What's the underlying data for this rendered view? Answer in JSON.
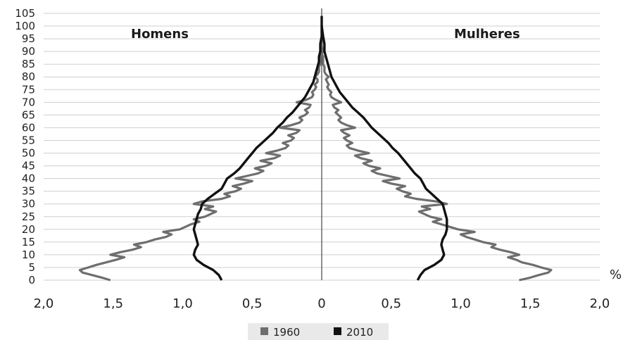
{
  "chart_data": {
    "type": "line",
    "subtype": "population-pyramid",
    "left_label": "Homens",
    "right_label": "Mulheres",
    "unit_label": "%",
    "y_ticks": [
      "0",
      "5",
      "10",
      "15",
      "20",
      "25",
      "30",
      "35",
      "40",
      "45",
      "50",
      "55",
      "60",
      "65",
      "70",
      "75",
      "80",
      "85",
      "90",
      "95",
      "100",
      "105"
    ],
    "x_ticks": [
      "2,0",
      "1,5",
      "1,0",
      "0,5",
      "0",
      "0,5",
      "1,0",
      "1,5",
      "2,0"
    ],
    "ylim": [
      0,
      105
    ],
    "xlim": [
      -2.0,
      2.0
    ],
    "grid": true,
    "legend_position": "bottom-center",
    "series": [
      {
        "name": "1960",
        "color": "#6e6e6e",
        "men": [
          [
            0,
            1.52
          ],
          [
            1,
            1.58
          ],
          [
            2,
            1.65
          ],
          [
            3,
            1.72
          ],
          [
            4,
            1.74
          ],
          [
            5,
            1.68
          ],
          [
            6,
            1.62
          ],
          [
            7,
            1.55
          ],
          [
            8,
            1.48
          ],
          [
            9,
            1.42
          ],
          [
            10,
            1.52
          ],
          [
            11,
            1.45
          ],
          [
            12,
            1.36
          ],
          [
            13,
            1.3
          ],
          [
            14,
            1.35
          ],
          [
            15,
            1.26
          ],
          [
            16,
            1.2
          ],
          [
            17,
            1.12
          ],
          [
            18,
            1.08
          ],
          [
            19,
            1.14
          ],
          [
            20,
            1.02
          ],
          [
            21,
            0.98
          ],
          [
            22,
            0.94
          ],
          [
            23,
            0.88
          ],
          [
            24,
            0.92
          ],
          [
            25,
            0.84
          ],
          [
            26,
            0.8
          ],
          [
            27,
            0.76
          ],
          [
            28,
            0.84
          ],
          [
            29,
            0.78
          ],
          [
            30,
            0.92
          ],
          [
            31,
            0.86
          ],
          [
            32,
            0.72
          ],
          [
            33,
            0.66
          ],
          [
            34,
            0.7
          ],
          [
            35,
            0.62
          ],
          [
            36,
            0.58
          ],
          [
            37,
            0.64
          ],
          [
            38,
            0.56
          ],
          [
            39,
            0.5
          ],
          [
            40,
            0.62
          ],
          [
            41,
            0.54
          ],
          [
            42,
            0.46
          ],
          [
            43,
            0.42
          ],
          [
            44,
            0.48
          ],
          [
            45,
            0.4
          ],
          [
            46,
            0.36
          ],
          [
            47,
            0.44
          ],
          [
            48,
            0.34
          ],
          [
            49,
            0.3
          ],
          [
            50,
            0.4
          ],
          [
            51,
            0.32
          ],
          [
            52,
            0.26
          ],
          [
            53,
            0.24
          ],
          [
            54,
            0.28
          ],
          [
            55,
            0.22
          ],
          [
            56,
            0.2
          ],
          [
            57,
            0.24
          ],
          [
            58,
            0.18
          ],
          [
            59,
            0.16
          ],
          [
            60,
            0.3
          ],
          [
            61,
            0.22
          ],
          [
            62,
            0.16
          ],
          [
            63,
            0.14
          ],
          [
            64,
            0.16
          ],
          [
            65,
            0.12
          ],
          [
            66,
            0.1
          ],
          [
            67,
            0.12
          ],
          [
            68,
            0.09
          ],
          [
            69,
            0.08
          ],
          [
            70,
            0.18
          ],
          [
            71,
            0.11
          ],
          [
            72,
            0.07
          ],
          [
            73,
            0.06
          ],
          [
            74,
            0.07
          ],
          [
            75,
            0.05
          ],
          [
            76,
            0.04
          ],
          [
            77,
            0.05
          ],
          [
            78,
            0.03
          ],
          [
            79,
            0.03
          ],
          [
            80,
            0.05
          ],
          [
            81,
            0.03
          ],
          [
            82,
            0.02
          ],
          [
            83,
            0.02
          ],
          [
            84,
            0.02
          ],
          [
            85,
            0.01
          ],
          [
            86,
            0.01
          ],
          [
            87,
            0.01
          ],
          [
            88,
            0.01
          ],
          [
            89,
            0.0
          ],
          [
            90,
            0.01
          ],
          [
            92,
            0.0
          ],
          [
            95,
            0.0
          ]
        ],
        "women": [
          [
            0,
            1.42
          ],
          [
            1,
            1.5
          ],
          [
            2,
            1.56
          ],
          [
            3,
            1.63
          ],
          [
            4,
            1.65
          ],
          [
            5,
            1.58
          ],
          [
            6,
            1.52
          ],
          [
            7,
            1.44
          ],
          [
            8,
            1.4
          ],
          [
            9,
            1.34
          ],
          [
            10,
            1.42
          ],
          [
            11,
            1.36
          ],
          [
            12,
            1.28
          ],
          [
            13,
            1.22
          ],
          [
            14,
            1.25
          ],
          [
            15,
            1.16
          ],
          [
            16,
            1.1
          ],
          [
            17,
            1.04
          ],
          [
            18,
            1.0
          ],
          [
            19,
            1.1
          ],
          [
            20,
            0.98
          ],
          [
            21,
            0.92
          ],
          [
            22,
            0.86
          ],
          [
            23,
            0.8
          ],
          [
            24,
            0.86
          ],
          [
            25,
            0.78
          ],
          [
            26,
            0.74
          ],
          [
            27,
            0.7
          ],
          [
            28,
            0.78
          ],
          [
            29,
            0.72
          ],
          [
            30,
            0.9
          ],
          [
            31,
            0.82
          ],
          [
            32,
            0.68
          ],
          [
            33,
            0.6
          ],
          [
            34,
            0.64
          ],
          [
            35,
            0.58
          ],
          [
            36,
            0.54
          ],
          [
            37,
            0.6
          ],
          [
            38,
            0.5
          ],
          [
            39,
            0.44
          ],
          [
            40,
            0.56
          ],
          [
            41,
            0.48
          ],
          [
            42,
            0.4
          ],
          [
            43,
            0.36
          ],
          [
            44,
            0.42
          ],
          [
            45,
            0.34
          ],
          [
            46,
            0.3
          ],
          [
            47,
            0.36
          ],
          [
            48,
            0.28
          ],
          [
            49,
            0.24
          ],
          [
            50,
            0.34
          ],
          [
            51,
            0.26
          ],
          [
            52,
            0.2
          ],
          [
            53,
            0.18
          ],
          [
            54,
            0.22
          ],
          [
            55,
            0.18
          ],
          [
            56,
            0.16
          ],
          [
            57,
            0.2
          ],
          [
            58,
            0.16
          ],
          [
            59,
            0.14
          ],
          [
            60,
            0.24
          ],
          [
            61,
            0.18
          ],
          [
            62,
            0.14
          ],
          [
            63,
            0.12
          ],
          [
            64,
            0.14
          ],
          [
            65,
            0.12
          ],
          [
            66,
            0.1
          ],
          [
            67,
            0.12
          ],
          [
            68,
            0.09
          ],
          [
            69,
            0.08
          ],
          [
            70,
            0.14
          ],
          [
            71,
            0.1
          ],
          [
            72,
            0.07
          ],
          [
            73,
            0.06
          ],
          [
            74,
            0.07
          ],
          [
            75,
            0.05
          ],
          [
            76,
            0.04
          ],
          [
            77,
            0.05
          ],
          [
            78,
            0.04
          ],
          [
            79,
            0.03
          ],
          [
            80,
            0.05
          ],
          [
            81,
            0.03
          ],
          [
            82,
            0.02
          ],
          [
            83,
            0.02
          ],
          [
            84,
            0.02
          ],
          [
            85,
            0.01
          ],
          [
            86,
            0.01
          ],
          [
            87,
            0.01
          ],
          [
            88,
            0.01
          ],
          [
            89,
            0.0
          ],
          [
            90,
            0.01
          ],
          [
            92,
            0.0
          ],
          [
            95,
            0.0
          ]
        ]
      },
      {
        "name": "2010",
        "color": "#111111",
        "men": [
          [
            0,
            0.72
          ],
          [
            2,
            0.74
          ],
          [
            4,
            0.78
          ],
          [
            6,
            0.85
          ],
          [
            8,
            0.9
          ],
          [
            10,
            0.92
          ],
          [
            12,
            0.91
          ],
          [
            14,
            0.89
          ],
          [
            16,
            0.9
          ],
          [
            18,
            0.91
          ],
          [
            20,
            0.92
          ],
          [
            22,
            0.91
          ],
          [
            24,
            0.9
          ],
          [
            26,
            0.89
          ],
          [
            28,
            0.87
          ],
          [
            30,
            0.86
          ],
          [
            32,
            0.82
          ],
          [
            34,
            0.77
          ],
          [
            36,
            0.72
          ],
          [
            38,
            0.7
          ],
          [
            40,
            0.68
          ],
          [
            42,
            0.63
          ],
          [
            44,
            0.59
          ],
          [
            46,
            0.56
          ],
          [
            48,
            0.53
          ],
          [
            50,
            0.5
          ],
          [
            52,
            0.47
          ],
          [
            54,
            0.43
          ],
          [
            56,
            0.39
          ],
          [
            58,
            0.35
          ],
          [
            60,
            0.32
          ],
          [
            62,
            0.28
          ],
          [
            64,
            0.25
          ],
          [
            66,
            0.21
          ],
          [
            68,
            0.18
          ],
          [
            70,
            0.15
          ],
          [
            72,
            0.12
          ],
          [
            74,
            0.1
          ],
          [
            76,
            0.08
          ],
          [
            78,
            0.06
          ],
          [
            80,
            0.05
          ],
          [
            82,
            0.04
          ],
          [
            84,
            0.03
          ],
          [
            86,
            0.02
          ],
          [
            88,
            0.02
          ],
          [
            90,
            0.01
          ],
          [
            93,
            0.01
          ],
          [
            96,
            0.0
          ],
          [
            100,
            0.0
          ]
        ],
        "women": [
          [
            0,
            0.69
          ],
          [
            2,
            0.71
          ],
          [
            4,
            0.74
          ],
          [
            6,
            0.81
          ],
          [
            8,
            0.86
          ],
          [
            10,
            0.88
          ],
          [
            12,
            0.87
          ],
          [
            14,
            0.86
          ],
          [
            16,
            0.87
          ],
          [
            18,
            0.89
          ],
          [
            20,
            0.9
          ],
          [
            22,
            0.9
          ],
          [
            24,
            0.9
          ],
          [
            26,
            0.89
          ],
          [
            28,
            0.88
          ],
          [
            30,
            0.87
          ],
          [
            32,
            0.83
          ],
          [
            34,
            0.79
          ],
          [
            36,
            0.75
          ],
          [
            38,
            0.73
          ],
          [
            40,
            0.71
          ],
          [
            42,
            0.67
          ],
          [
            44,
            0.64
          ],
          [
            46,
            0.61
          ],
          [
            48,
            0.58
          ],
          [
            50,
            0.55
          ],
          [
            52,
            0.51
          ],
          [
            54,
            0.48
          ],
          [
            56,
            0.44
          ],
          [
            58,
            0.4
          ],
          [
            60,
            0.36
          ],
          [
            62,
            0.33
          ],
          [
            64,
            0.3
          ],
          [
            66,
            0.26
          ],
          [
            68,
            0.22
          ],
          [
            70,
            0.19
          ],
          [
            72,
            0.16
          ],
          [
            74,
            0.13
          ],
          [
            76,
            0.11
          ],
          [
            78,
            0.09
          ],
          [
            80,
            0.07
          ],
          [
            82,
            0.06
          ],
          [
            84,
            0.05
          ],
          [
            86,
            0.04
          ],
          [
            88,
            0.03
          ],
          [
            90,
            0.02
          ],
          [
            93,
            0.02
          ],
          [
            96,
            0.01
          ],
          [
            100,
            0.0
          ],
          [
            104,
            0.0
          ]
        ]
      }
    ]
  }
}
